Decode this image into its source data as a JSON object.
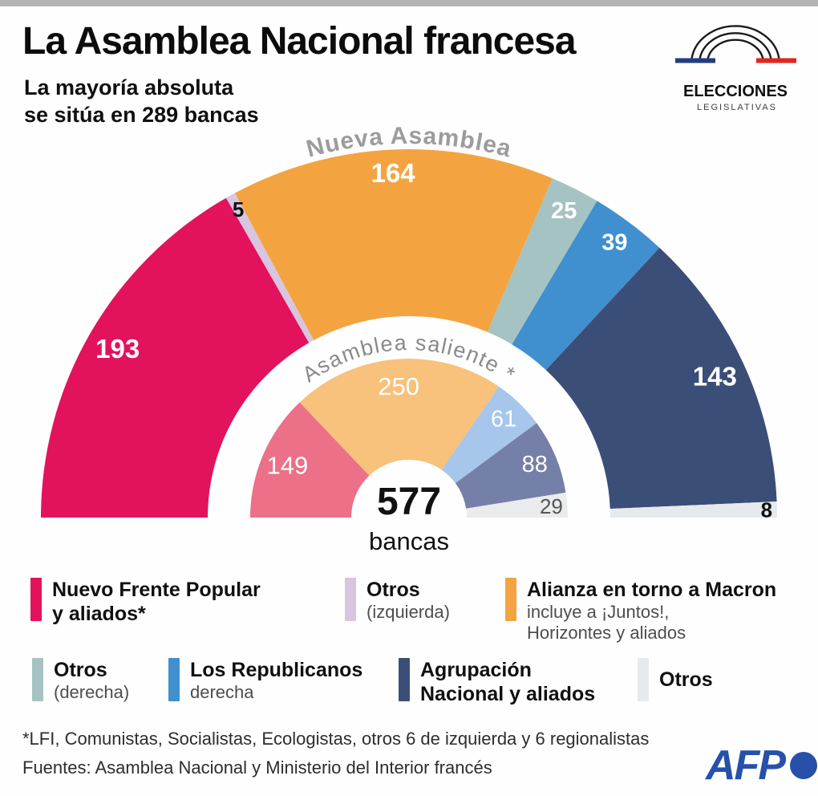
{
  "page": {
    "background": "#fefefe",
    "top_bar_color": "#b4b4b4"
  },
  "header": {
    "title": "La Asamblea Nacional francesa",
    "subtitle_line1": "La mayoría absoluta",
    "subtitle_line2": "se sitúa en 289 bancas"
  },
  "logo": {
    "line1": "ELECCIONES",
    "line2": "LEGISLATIVAS",
    "arc_color": "#1a1a1a",
    "flag_blue": "#223d80",
    "flag_red": "#e1251f"
  },
  "chart_data": {
    "type": "pie",
    "subtype": "nested-half-donut-hemicycle",
    "total_seats": 577,
    "majority_note_seats": 289,
    "total_label": "577",
    "total_sublabel": "bancas",
    "rings": [
      {
        "name": "nueva-asamblea",
        "title": "Nueva Asamblea",
        "segments": [
          {
            "party": "Nuevo Frente Popular y aliados",
            "value": 193,
            "color": "#e3125c",
            "label_color": "#ffffff"
          },
          {
            "party": "Otros (izquierda)",
            "value": 5,
            "color": "#d8c5e0",
            "label_color": "#111111"
          },
          {
            "party": "Alianza en torno a Macron",
            "value": 164,
            "color": "#f3a440",
            "label_color": "#ffffff"
          },
          {
            "party": "Otros (derecha)",
            "value": 25,
            "color": "#a6c3c3",
            "label_color": "#ffffff"
          },
          {
            "party": "Los Republicanos",
            "value": 39,
            "color": "#4090cf",
            "label_color": "#ffffff"
          },
          {
            "party": "Agrupación Nacional y aliados",
            "value": 143,
            "color": "#3b4e77",
            "label_color": "#ffffff"
          },
          {
            "party": "Otros",
            "value": 8,
            "color": "#e7eaec",
            "label_color": "#111111"
          }
        ]
      },
      {
        "name": "asamblea-saliente",
        "title": "Asamblea saliente *",
        "segments": [
          {
            "party": "Nuevo Frente Popular y aliados",
            "value": 149,
            "color": "#ec7087",
            "label_color": "#ffffff"
          },
          {
            "party": "Alianza en torno a Macron",
            "value": 250,
            "color": "#f8c17c",
            "label_color": "#ffffff"
          },
          {
            "party": "Los Republicanos",
            "value": 61,
            "color": "#a6c6eb",
            "label_color": "#ffffff"
          },
          {
            "party": "Agrupación Nacional y aliados",
            "value": 88,
            "color": "#7580a8",
            "label_color": "#ffffff"
          },
          {
            "party": "Otros",
            "value": 29,
            "color": "#e9ebed",
            "label_color": "#555555"
          }
        ]
      }
    ]
  },
  "legend": {
    "rows": [
      [
        {
          "label": "Nuevo Frente Popular",
          "label2": "y aliados*",
          "color": "#e3125c"
        },
        {
          "label": "Otros",
          "sub": "(izquierda)",
          "color": "#d8c5e0"
        },
        {
          "label": "Alianza en torno a Macron",
          "sub": "incluye a ¡Juntos!,",
          "sub2": "Horizontes y aliados",
          "color": "#f3a440"
        }
      ],
      [
        {
          "label": "Otros",
          "sub": "(derecha)",
          "color": "#a6c3c3"
        },
        {
          "label": "Los Republicanos",
          "sub": "derecha",
          "color": "#4090cf"
        },
        {
          "label": "Agrupación",
          "label2": "Nacional y aliados",
          "color": "#3b4e77"
        },
        {
          "label": "Otros",
          "color": "#e7eaec"
        }
      ]
    ]
  },
  "footnote": "*LFI, Comunistas, Socialistas, Ecologistas, otros 6 de izquierda y 6 regionalistas",
  "source": "Fuentes: Asamblea Nacional y Ministerio del Interior francés",
  "afp": {
    "label": "AFP",
    "color": "#2750ab"
  }
}
